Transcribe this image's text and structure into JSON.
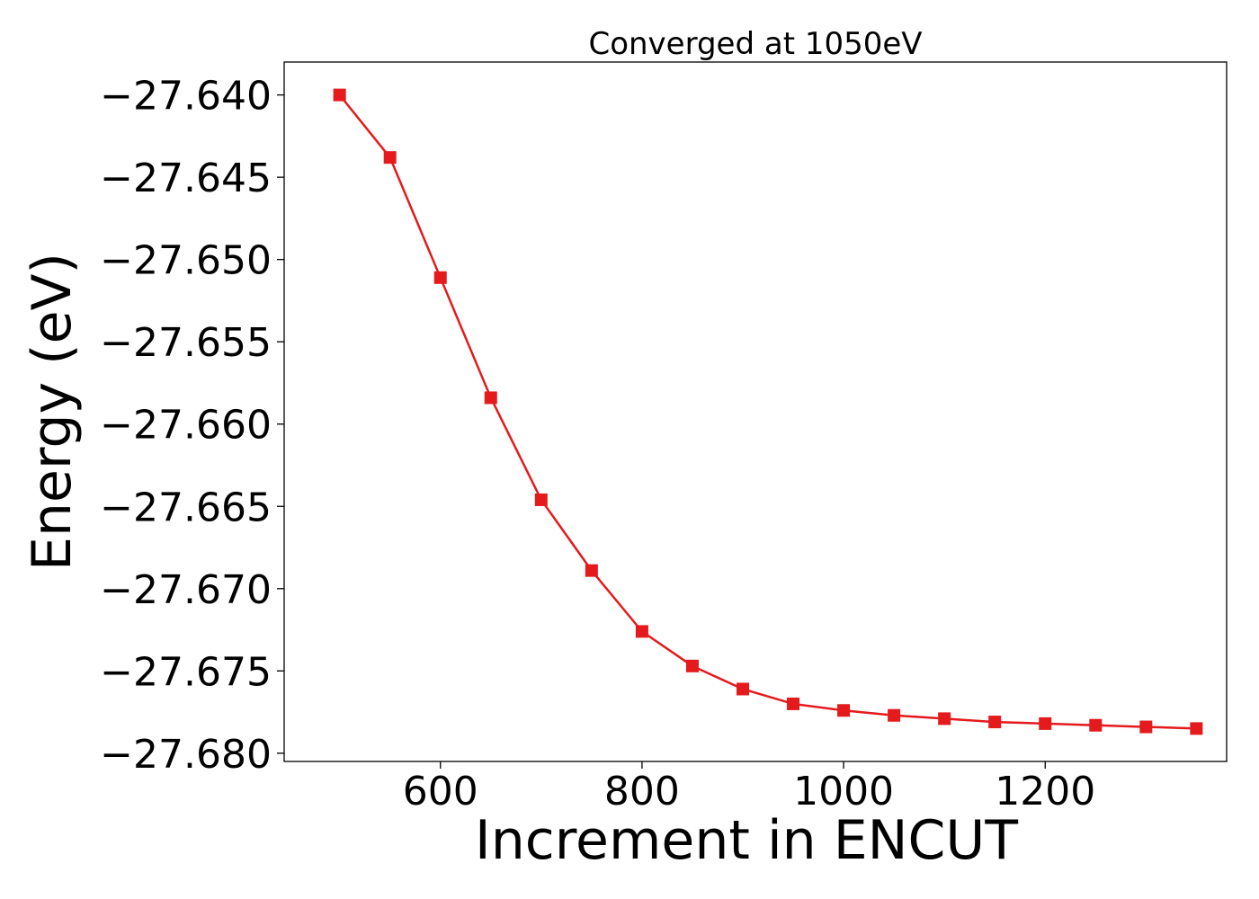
{
  "chart_data": {
    "type": "line",
    "title": "Converged at 1050eV",
    "xlabel": "Increment in ENCUT",
    "ylabel": "Energy (eV)",
    "xlim": [
      445,
      1380
    ],
    "ylim": [
      -27.6805,
      -27.638
    ],
    "x_ticks": [
      600,
      800,
      1000,
      1200
    ],
    "x_tick_labels": [
      "600",
      "800",
      "1000",
      "1200"
    ],
    "y_ticks": [
      -27.64,
      -27.645,
      -27.65,
      -27.655,
      -27.66,
      -27.665,
      -27.67,
      -27.675,
      -27.68
    ],
    "y_tick_labels": [
      "−27.640",
      "−27.645",
      "−27.650",
      "−27.655",
      "−27.660",
      "−27.665",
      "−27.670",
      "−27.675",
      "−27.680"
    ],
    "grid": false,
    "series": [
      {
        "color": "#e41a1c",
        "marker": "square",
        "x": [
          500,
          550,
          600,
          650,
          700,
          750,
          800,
          850,
          900,
          950,
          1000,
          1050,
          1100,
          1150,
          1200,
          1250,
          1300,
          1350
        ],
        "y": [
          -27.64,
          -27.6438,
          -27.6511,
          -27.6584,
          -27.6646,
          -27.6689,
          -27.6726,
          -27.6747,
          -27.6761,
          -27.677,
          -27.6774,
          -27.6777,
          -27.6779,
          -27.6781,
          -27.6782,
          -27.6783,
          -27.6784,
          -27.6785
        ]
      }
    ]
  }
}
